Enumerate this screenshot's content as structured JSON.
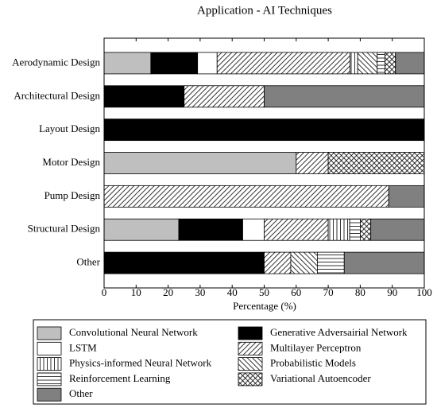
{
  "chart_data": {
    "type": "stacked-bar-horizontal",
    "title": "Application - AI Techniques",
    "x_label": "Percentage (%)",
    "categories": [
      "Aerodynamic Design",
      "Architectural Design",
      "Layout Design",
      "Motor Design",
      "Pump Design",
      "Structural Design",
      "Other"
    ],
    "series": [
      {
        "name": "Convolutional Neural Network",
        "color": "#bfbfbf",
        "values": [
          14.6,
          0,
          0,
          60,
          0,
          23.3,
          0
        ]
      },
      {
        "name": "Generative Adversairial Network",
        "color": "#000000",
        "values": [
          14.6,
          25,
          100,
          0,
          0,
          20,
          50
        ]
      },
      {
        "name": "LSTM",
        "color": "#ffffff",
        "values": [
          6.1,
          0,
          0,
          0,
          0,
          6.7,
          0
        ]
      },
      {
        "name": "Multilayer Perceptron",
        "color": "#000000",
        "hatch": "ne",
        "values": [
          41.5,
          25,
          0,
          10,
          88.9,
          20,
          8.3
        ]
      },
      {
        "name": "Physics-informed Neural Network",
        "color": "#000000",
        "hatch": "vertical",
        "values": [
          2.4,
          0,
          0,
          0,
          0,
          6.7,
          0
        ]
      },
      {
        "name": "Probabilistic Models",
        "color": "#000000",
        "hatch": "nw",
        "values": [
          6.1,
          0,
          0,
          0,
          0,
          0,
          8.3
        ]
      },
      {
        "name": "Reinforcement Learning",
        "color": "#000000",
        "hatch": "horizontal",
        "values": [
          2.4,
          0,
          0,
          0,
          0,
          3.3,
          8.4
        ]
      },
      {
        "name": "Variational Autoencoder",
        "color": "#000000",
        "hatch": "cross",
        "values": [
          3.3,
          0,
          0,
          30,
          0,
          3.3,
          0
        ]
      },
      {
        "name": "Other",
        "color": "#808080",
        "values": [
          9,
          50,
          0,
          0,
          11.1,
          16.7,
          25
        ]
      }
    ],
    "xlim": [
      0,
      100
    ],
    "xticks": [
      0,
      10,
      20,
      30,
      40,
      50,
      60,
      70,
      80,
      90,
      100
    ]
  }
}
